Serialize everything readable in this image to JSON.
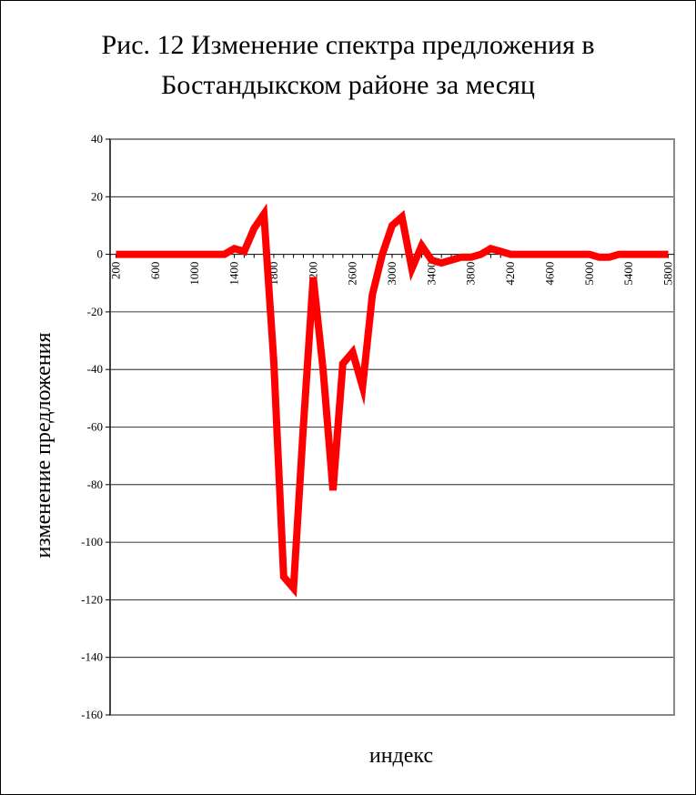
{
  "chart_data": {
    "type": "line",
    "title": [
      "Рис. 12 Изменение спектра предложения в",
      "Бостандыкском районе за месяц"
    ],
    "xlabel": "индекс",
    "ylabel": "изменение предложения",
    "ylim": [
      -160,
      40
    ],
    "yticks": [
      40,
      20,
      0,
      -20,
      -40,
      -60,
      -80,
      -100,
      -120,
      -140,
      -160
    ],
    "xtick_labels": [
      "200",
      "600",
      "1000",
      "1400",
      "1800",
      "2200",
      "2600",
      "3000",
      "3400",
      "3800",
      "4200",
      "4600",
      "5000",
      "5400",
      "5800"
    ],
    "grid": "horizontal",
    "legend": "none",
    "line_color": "#ff0000",
    "series": [
      {
        "x": [
          200,
          300,
          400,
          500,
          600,
          700,
          800,
          900,
          1000,
          1100,
          1200,
          1300,
          1400,
          1500,
          1600,
          1700,
          1800,
          1900,
          2000,
          2100,
          2200,
          2300,
          2400,
          2500,
          2600,
          2700,
          2800,
          2900,
          3000,
          3100,
          3200,
          3300,
          3400,
          3500,
          3600,
          3700,
          3800,
          3900,
          4000,
          4100,
          4200,
          4300,
          4400,
          4500,
          4600,
          4700,
          4800,
          4900,
          5000,
          5100,
          5200,
          5300,
          5400,
          5500,
          5600,
          5700,
          5800
        ],
        "values": [
          0,
          0,
          0,
          0,
          0,
          0,
          0,
          0,
          0,
          0,
          0,
          0,
          2,
          1,
          9,
          14,
          -37,
          -112,
          -116,
          -60,
          -8,
          -40,
          -82,
          -38,
          -34,
          -46,
          -14,
          0,
          10,
          13,
          -5,
          3,
          -2,
          -3,
          -2,
          -1,
          -1,
          0,
          2,
          1,
          0,
          0,
          0,
          0,
          0,
          0,
          0,
          0,
          0,
          -1,
          -1,
          0,
          0,
          0,
          0,
          0,
          0
        ]
      }
    ]
  }
}
